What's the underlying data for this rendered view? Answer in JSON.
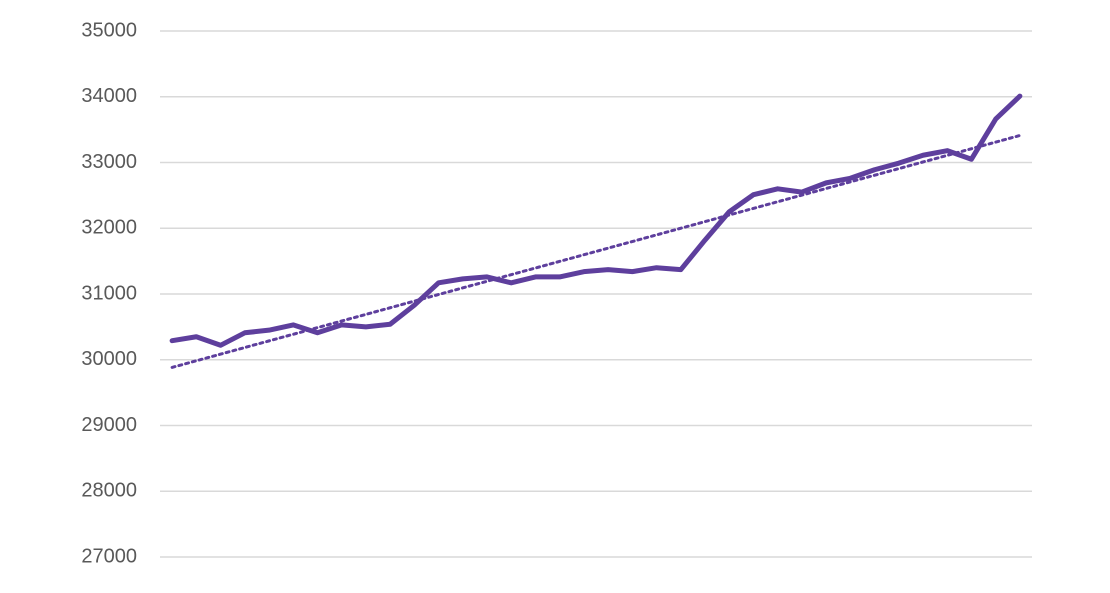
{
  "chart_data": {
    "type": "line",
    "categories": [
      null,
      null,
      null,
      null,
      null,
      null,
      null,
      null,
      null,
      null,
      null,
      null,
      null,
      null,
      null,
      null,
      null,
      null,
      null,
      null,
      null,
      null,
      null,
      null,
      null,
      null,
      null,
      null,
      null,
      null,
      null,
      null,
      null,
      null,
      null,
      null
    ],
    "values": [
      30290,
      30350,
      30220,
      30410,
      30450,
      30530,
      30410,
      30530,
      30500,
      30540,
      30830,
      31170,
      31230,
      31260,
      31170,
      31260,
      31260,
      31340,
      31370,
      31340,
      31400,
      31370,
      31820,
      32250,
      32510,
      32600,
      32550,
      32690,
      32760,
      32890,
      32990,
      33110,
      33180,
      33050,
      33660,
      34010
    ],
    "color": "#5e3f9d",
    "trendline": true,
    "ylim": [
      27000,
      35000
    ],
    "yticks": [
      27000,
      28000,
      29000,
      30000,
      31000,
      32000,
      33000,
      34000,
      35000
    ],
    "grid": true
  }
}
